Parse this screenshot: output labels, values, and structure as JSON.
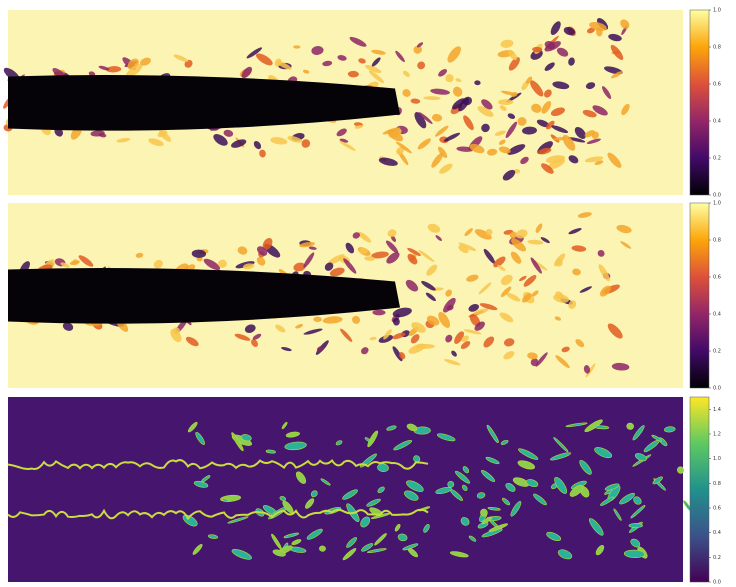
{
  "chart_data": [
    {
      "type": "heatmap",
      "ylim": [
        0,
        1
      ],
      "yticks": [
        {
          "value": 0,
          "label": "0.0"
        },
        0.2,
        0.4,
        0.6,
        0.8,
        {
          "value": 1,
          "label": "1.0"
        }
      ],
      "colors": [
        "#000004",
        "#420a68",
        "#932667",
        "#dd513a",
        "#fca50a",
        "#fcffa4"
      ]
    },
    {
      "type": "heatmap",
      "ylim": [
        0,
        1
      ],
      "yticks": [
        {
          "value": 0,
          "label": "0.0"
        },
        0.2,
        0.4,
        0.6,
        0.8,
        {
          "value": 1,
          "label": "1.0"
        }
      ],
      "colors": [
        "#000004",
        "#420a68",
        "#932667",
        "#dd513a",
        "#fca50a",
        "#fcffa4"
      ]
    },
    {
      "type": "heatmap",
      "ylim": [
        0,
        1.5
      ],
      "yticks": [
        {
          "value": 0,
          "label": "0.0"
        },
        0.2,
        0.4,
        0.6,
        0.8,
        {
          "value": 1,
          "label": "1.0"
        },
        1.2,
        1.4
      ],
      "colors": [
        "#440154",
        "#3b528b",
        "#21918c",
        "#5ec962",
        "#fde725"
      ]
    }
  ]
}
